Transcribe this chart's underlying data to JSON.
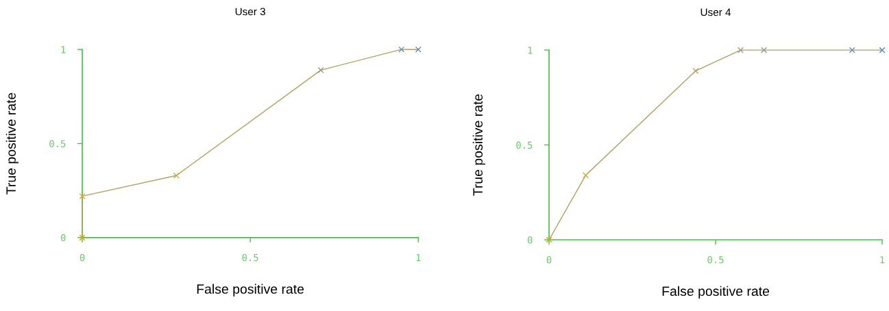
{
  "chart_data": [
    {
      "type": "line",
      "title": "User 3",
      "xlabel": "False positive rate",
      "ylabel": "True positive rate",
      "x": [
        0,
        0,
        0.28,
        0.71,
        0.95,
        1
      ],
      "series": [
        {
          "color": "#b0a060",
          "colors": [
            "#e8a000",
            "#e0a820",
            "#c8a848",
            "#909888",
            "#6090b8",
            "#5088c0"
          ],
          "values": [
            0,
            0.22,
            0.33,
            0.89,
            1,
            1
          ]
        }
      ],
      "xlim": [
        0,
        1
      ],
      "ylim": [
        0,
        1
      ],
      "xticks": [
        0,
        0.5,
        1
      ],
      "yticks": [
        0,
        0.5,
        1
      ],
      "marker": "cross",
      "line_style": "solid",
      "grid": false
    },
    {
      "type": "line",
      "title": "User 4",
      "xlabel": "False positive rate",
      "ylabel": "True positive rate",
      "x": [
        0,
        0.11,
        0.44,
        0.575,
        0.645,
        0.91,
        1
      ],
      "series": [
        {
          "color": "#b0a060",
          "colors": [
            "#e8a000",
            "#d8a830",
            "#b8a060",
            "#a09a80",
            "#909890",
            "#6890b0",
            "#5088c0"
          ],
          "values": [
            0,
            0.34,
            0.89,
            1,
            1,
            1,
            1
          ]
        }
      ],
      "xlim": [
        0,
        1
      ],
      "ylim": [
        0,
        1
      ],
      "xticks": [
        0,
        0.5,
        1
      ],
      "yticks": [
        0,
        0.5,
        1
      ],
      "marker": "cross",
      "line_style": "solid",
      "grid": false
    }
  ]
}
